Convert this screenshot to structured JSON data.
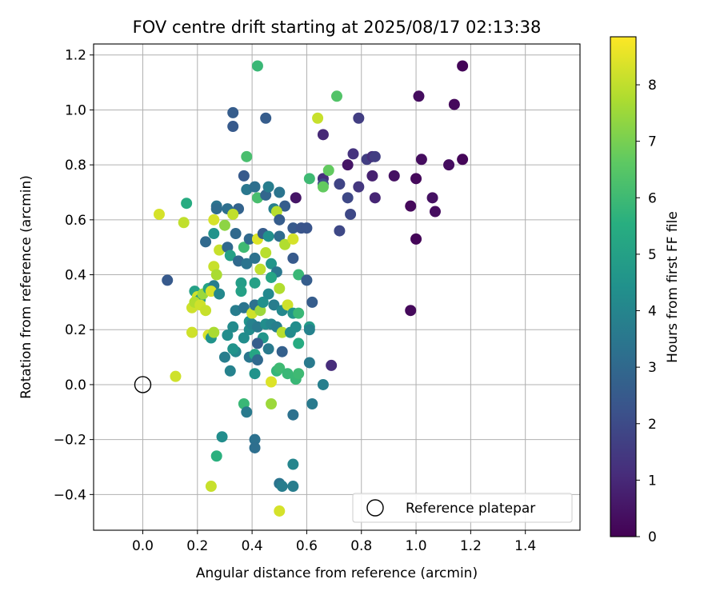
{
  "chart_data": {
    "type": "scatter",
    "title": "FOV centre drift starting at 2025/08/17 02:13:38",
    "xlabel": "Angular distance from reference (arcmin)",
    "ylabel": "Rotation from reference (arcmin)",
    "xlim": [
      -0.18,
      1.6
    ],
    "ylim": [
      -0.53,
      1.24
    ],
    "xticks": [
      0.0,
      0.2,
      0.4,
      0.6,
      0.8,
      1.0,
      1.2,
      1.4
    ],
    "xtick_labels": [
      "0.0",
      "0.2",
      "0.4",
      "0.6",
      "0.8",
      "1.0",
      "1.2",
      "1.4"
    ],
    "yticks": [
      -0.4,
      -0.2,
      0.0,
      0.2,
      0.4,
      0.6,
      0.8,
      1.0,
      1.2
    ],
    "ytick_labels": [
      "−0.4",
      "−0.2",
      "0.0",
      "0.2",
      "0.4",
      "0.6",
      "0.8",
      "1.0",
      "1.2"
    ],
    "grid": true,
    "colormap": "viridis",
    "colorbar": {
      "label": "Hours from first FF file",
      "range": [
        0,
        8.85
      ],
      "ticks": [
        0,
        1,
        2,
        3,
        4,
        5,
        6,
        7,
        8
      ],
      "tick_labels": [
        "0",
        "1",
        "2",
        "3",
        "4",
        "5",
        "6",
        "7",
        "8"
      ]
    },
    "legend": {
      "position": "lower-right",
      "entries": [
        {
          "label": "Reference platepar",
          "marker": "open-circle",
          "x": 0.0,
          "y": 0.0
        }
      ]
    },
    "points": [
      [
        1.17,
        1.16,
        0.1
      ],
      [
        1.14,
        1.02,
        0.2
      ],
      [
        1.17,
        0.82,
        0.1
      ],
      [
        1.01,
        1.05,
        0.3
      ],
      [
        1.02,
        0.82,
        0.3
      ],
      [
        1.12,
        0.8,
        0.3
      ],
      [
        1.0,
        0.75,
        0.2
      ],
      [
        0.92,
        0.76,
        0.4
      ],
      [
        0.98,
        0.65,
        0.2
      ],
      [
        1.06,
        0.68,
        0.4
      ],
      [
        1.07,
        0.63,
        0.3
      ],
      [
        1.0,
        0.53,
        0.1
      ],
      [
        0.98,
        0.27,
        0.2
      ],
      [
        0.75,
        0.8,
        0.5
      ],
      [
        0.79,
        0.97,
        1.6
      ],
      [
        0.77,
        0.84,
        1.3
      ],
      [
        0.82,
        0.82,
        1.6
      ],
      [
        0.84,
        0.83,
        1.2
      ],
      [
        0.85,
        0.83,
        1.6
      ],
      [
        0.72,
        0.73,
        1.8
      ],
      [
        0.79,
        0.72,
        1.4
      ],
      [
        0.84,
        0.76,
        0.8
      ],
      [
        0.85,
        0.68,
        0.9
      ],
      [
        0.75,
        0.68,
        1.9
      ],
      [
        0.76,
        0.62,
        1.9
      ],
      [
        0.72,
        0.56,
        1.9
      ],
      [
        0.66,
        0.91,
        1.0
      ],
      [
        0.66,
        0.75,
        1.2
      ],
      [
        0.66,
        0.73,
        2.0
      ],
      [
        0.69,
        0.07,
        1.1
      ],
      [
        0.56,
        0.68,
        0.5
      ],
      [
        0.42,
        1.16,
        5.9
      ],
      [
        0.71,
        1.05,
        6.4
      ],
      [
        0.64,
        0.97,
        8.1
      ],
      [
        0.33,
        0.99,
        2.6
      ],
      [
        0.33,
        0.94,
        2.5
      ],
      [
        0.45,
        0.97,
        2.6
      ],
      [
        0.38,
        0.83,
        6.2
      ],
      [
        0.37,
        0.76,
        2.5
      ],
      [
        0.68,
        0.78,
        6.7
      ],
      [
        0.61,
        0.75,
        6.0
      ],
      [
        0.66,
        0.72,
        6.7
      ],
      [
        0.16,
        0.66,
        5.4
      ],
      [
        0.27,
        0.65,
        3.4
      ],
      [
        0.27,
        0.64,
        3.1
      ],
      [
        0.31,
        0.64,
        3.2
      ],
      [
        0.35,
        0.64,
        2.8
      ],
      [
        0.38,
        0.71,
        3.5
      ],
      [
        0.41,
        0.72,
        3.2
      ],
      [
        0.42,
        0.68,
        6.2
      ],
      [
        0.45,
        0.69,
        2.9
      ],
      [
        0.46,
        0.72,
        3.7
      ],
      [
        0.5,
        0.7,
        3.4
      ],
      [
        0.52,
        0.65,
        2.6
      ],
      [
        0.48,
        0.64,
        3.8
      ],
      [
        0.49,
        0.63,
        7.9
      ],
      [
        0.06,
        0.62,
        8.3
      ],
      [
        0.15,
        0.59,
        8.0
      ],
      [
        0.26,
        0.6,
        8.3
      ],
      [
        0.3,
        0.58,
        7.3
      ],
      [
        0.33,
        0.62,
        8.0
      ],
      [
        0.5,
        0.6,
        2.6
      ],
      [
        0.55,
        0.57,
        2.5
      ],
      [
        0.58,
        0.57,
        2.3
      ],
      [
        0.6,
        0.57,
        2.3
      ],
      [
        0.23,
        0.52,
        3.0
      ],
      [
        0.26,
        0.55,
        4.5
      ],
      [
        0.28,
        0.49,
        8.1
      ],
      [
        0.31,
        0.5,
        3.0
      ],
      [
        0.34,
        0.55,
        3.0
      ],
      [
        0.37,
        0.5,
        6.0
      ],
      [
        0.39,
        0.53,
        3.0
      ],
      [
        0.42,
        0.53,
        8.4
      ],
      [
        0.44,
        0.55,
        2.6
      ],
      [
        0.46,
        0.54,
        4.4
      ],
      [
        0.5,
        0.54,
        3.1
      ],
      [
        0.52,
        0.51,
        7.8
      ],
      [
        0.55,
        0.53,
        8.3
      ],
      [
        0.32,
        0.47,
        5.0
      ],
      [
        0.35,
        0.45,
        3.0
      ],
      [
        0.38,
        0.44,
        3.4
      ],
      [
        0.41,
        0.46,
        3.3
      ],
      [
        0.43,
        0.42,
        8.0
      ],
      [
        0.45,
        0.48,
        7.9
      ],
      [
        0.47,
        0.44,
        4.6
      ],
      [
        0.49,
        0.41,
        3.5
      ],
      [
        0.55,
        0.46,
        2.5
      ],
      [
        0.09,
        0.38,
        2.5
      ],
      [
        0.26,
        0.43,
        8.1
      ],
      [
        0.27,
        0.4,
        7.7
      ],
      [
        0.36,
        0.37,
        4.9
      ],
      [
        0.41,
        0.37,
        5.0
      ],
      [
        0.47,
        0.39,
        5.2
      ],
      [
        0.57,
        0.4,
        5.9
      ],
      [
        0.6,
        0.38,
        2.6
      ],
      [
        0.19,
        0.34,
        5.0
      ],
      [
        0.2,
        0.32,
        8.2
      ],
      [
        0.21,
        0.31,
        4.8
      ],
      [
        0.22,
        0.33,
        7.5
      ],
      [
        0.18,
        0.28,
        8.2
      ],
      [
        0.19,
        0.3,
        7.8
      ],
      [
        0.21,
        0.29,
        8.2
      ],
      [
        0.23,
        0.27,
        8.1
      ],
      [
        0.24,
        0.35,
        5.1
      ],
      [
        0.26,
        0.36,
        3.7
      ],
      [
        0.25,
        0.34,
        8.3
      ],
      [
        0.28,
        0.33,
        4.1
      ],
      [
        0.34,
        0.27,
        3.7
      ],
      [
        0.36,
        0.34,
        5.0
      ],
      [
        0.37,
        0.28,
        3.4
      ],
      [
        0.39,
        0.23,
        4.5
      ],
      [
        0.4,
        0.26,
        8.2
      ],
      [
        0.41,
        0.29,
        3.3
      ],
      [
        0.43,
        0.27,
        7.5
      ],
      [
        0.44,
        0.3,
        4.4
      ],
      [
        0.46,
        0.33,
        4.1
      ],
      [
        0.48,
        0.29,
        3.7
      ],
      [
        0.5,
        0.35,
        7.8
      ],
      [
        0.51,
        0.27,
        4.1
      ],
      [
        0.53,
        0.29,
        8.2
      ],
      [
        0.55,
        0.26,
        4.6
      ],
      [
        0.57,
        0.26,
        5.9
      ],
      [
        0.62,
        0.3,
        2.6
      ],
      [
        0.18,
        0.19,
        8.2
      ],
      [
        0.24,
        0.18,
        8.3
      ],
      [
        0.25,
        0.17,
        4.5
      ],
      [
        0.26,
        0.19,
        7.7
      ],
      [
        0.31,
        0.18,
        4.3
      ],
      [
        0.33,
        0.21,
        4.2
      ],
      [
        0.34,
        0.12,
        4.1
      ],
      [
        0.37,
        0.17,
        4.3
      ],
      [
        0.39,
        0.2,
        4.2
      ],
      [
        0.4,
        0.22,
        3.9
      ],
      [
        0.42,
        0.21,
        3.6
      ],
      [
        0.44,
        0.17,
        4.6
      ],
      [
        0.45,
        0.22,
        4.3
      ],
      [
        0.47,
        0.22,
        4.0
      ],
      [
        0.49,
        0.21,
        3.8
      ],
      [
        0.51,
        0.19,
        7.9
      ],
      [
        0.54,
        0.19,
        4.2
      ],
      [
        0.56,
        0.21,
        4.3
      ],
      [
        0.61,
        0.21,
        4.8
      ],
      [
        0.61,
        0.2,
        3.9
      ],
      [
        0.3,
        0.1,
        3.7
      ],
      [
        0.33,
        0.13,
        4.5
      ],
      [
        0.39,
        0.1,
        3.5
      ],
      [
        0.41,
        0.11,
        5.2
      ],
      [
        0.42,
        0.15,
        2.6
      ],
      [
        0.42,
        0.09,
        3.0
      ],
      [
        0.46,
        0.13,
        3.6
      ],
      [
        0.51,
        0.12,
        2.7
      ],
      [
        0.57,
        0.15,
        5.4
      ],
      [
        0.61,
        0.08,
        3.6
      ],
      [
        0.12,
        0.03,
        8.2
      ],
      [
        0.32,
        0.05,
        3.9
      ],
      [
        0.41,
        0.04,
        4.5
      ],
      [
        0.49,
        0.05,
        5.8
      ],
      [
        0.5,
        0.06,
        6.0
      ],
      [
        0.53,
        0.04,
        5.9
      ],
      [
        0.56,
        0.02,
        5.9
      ],
      [
        0.57,
        0.04,
        6.0
      ],
      [
        0.47,
        0.01,
        8.4
      ],
      [
        0.66,
        0.0,
        3.8
      ],
      [
        0.37,
        -0.07,
        5.9
      ],
      [
        0.47,
        -0.07,
        7.5
      ],
      [
        0.55,
        -0.11,
        3.3
      ],
      [
        0.38,
        -0.1,
        3.6
      ],
      [
        0.62,
        -0.07,
        3.6
      ],
      [
        0.41,
        -0.2,
        3.3
      ],
      [
        0.41,
        -0.23,
        3.2
      ],
      [
        0.29,
        -0.19,
        4.3
      ],
      [
        0.27,
        -0.26,
        5.6
      ],
      [
        0.55,
        -0.29,
        4.0
      ],
      [
        0.5,
        -0.36,
        3.4
      ],
      [
        0.51,
        -0.37,
        3.7
      ],
      [
        0.55,
        -0.37,
        3.7
      ],
      [
        0.25,
        -0.37,
        8.1
      ],
      [
        0.5,
        -0.46,
        8.3
      ]
    ]
  }
}
